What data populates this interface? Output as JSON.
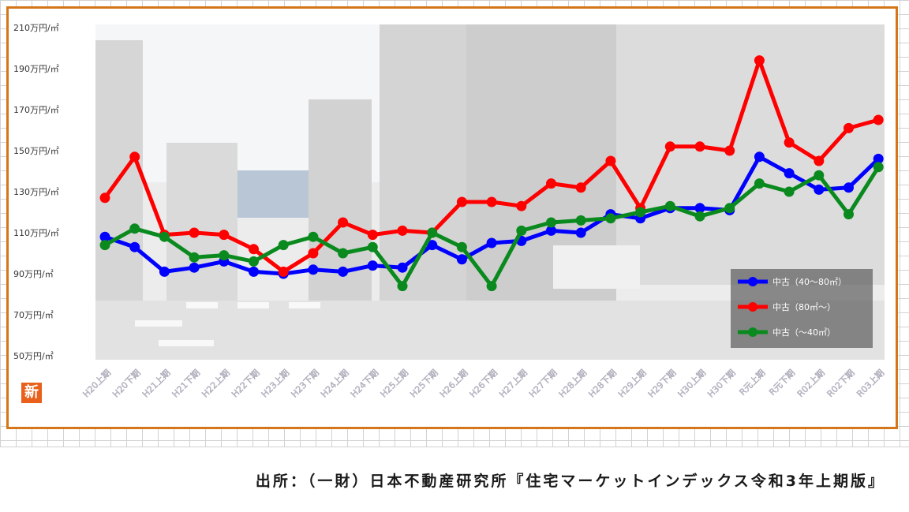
{
  "chart_data": {
    "type": "line",
    "categories": [
      "H20上期",
      "H20下期",
      "H21上期",
      "H21下期",
      "H22上期",
      "H22下期",
      "H23上期",
      "H23下期",
      "H24上期",
      "H24下期",
      "H25上期",
      "H25下期",
      "H26上期",
      "H26下期",
      "H27上期",
      "H27下期",
      "H28上期",
      "H28下期",
      "H29上期",
      "H29下期",
      "H30上期",
      "H30下期",
      "R元上期",
      "R元下期",
      "R02上期",
      "R02下期",
      "R03上期"
    ],
    "y_ticks": [
      "210万円/㎡",
      "190万円/㎡",
      "170万円/㎡",
      "150万円/㎡",
      "130万円/㎡",
      "110万円/㎡",
      "90万円/㎡",
      "70万円/㎡",
      "50万円/㎡"
    ],
    "y_tick_values": [
      210,
      190,
      170,
      150,
      130,
      110,
      90,
      70,
      50
    ],
    "ylim": [
      50,
      210
    ],
    "series": [
      {
        "name": "中古（40～80㎡）",
        "color": "#0000ff",
        "values": [
          108,
          103,
          91,
          93,
          96,
          91,
          90,
          92,
          91,
          94,
          93,
          104,
          97,
          105,
          106,
          111,
          110,
          119,
          117,
          122,
          122,
          121,
          147,
          139,
          131,
          132,
          146
        ]
      },
      {
        "name": "中古（80㎡～）",
        "color": "#ff0000",
        "values": [
          127,
          147,
          109,
          110,
          109,
          102,
          91,
          100,
          115,
          109,
          111,
          110,
          125,
          125,
          123,
          134,
          132,
          145,
          122,
          152,
          152,
          150,
          194,
          154,
          145,
          161,
          165
        ]
      },
      {
        "name": "中古（～40㎡）",
        "color": "#0a8a1e",
        "values": [
          104,
          112,
          108,
          98,
          99,
          96,
          104,
          108,
          100,
          103,
          84,
          110,
          103,
          84,
          111,
          115,
          116,
          117,
          120,
          123,
          118,
          122,
          134,
          130,
          138,
          119,
          142
        ]
      }
    ]
  },
  "badge_text": "新",
  "source_note": "出所：（一財）日本不動産研究所『住宅マーケットインデックス令和3年上期版』"
}
